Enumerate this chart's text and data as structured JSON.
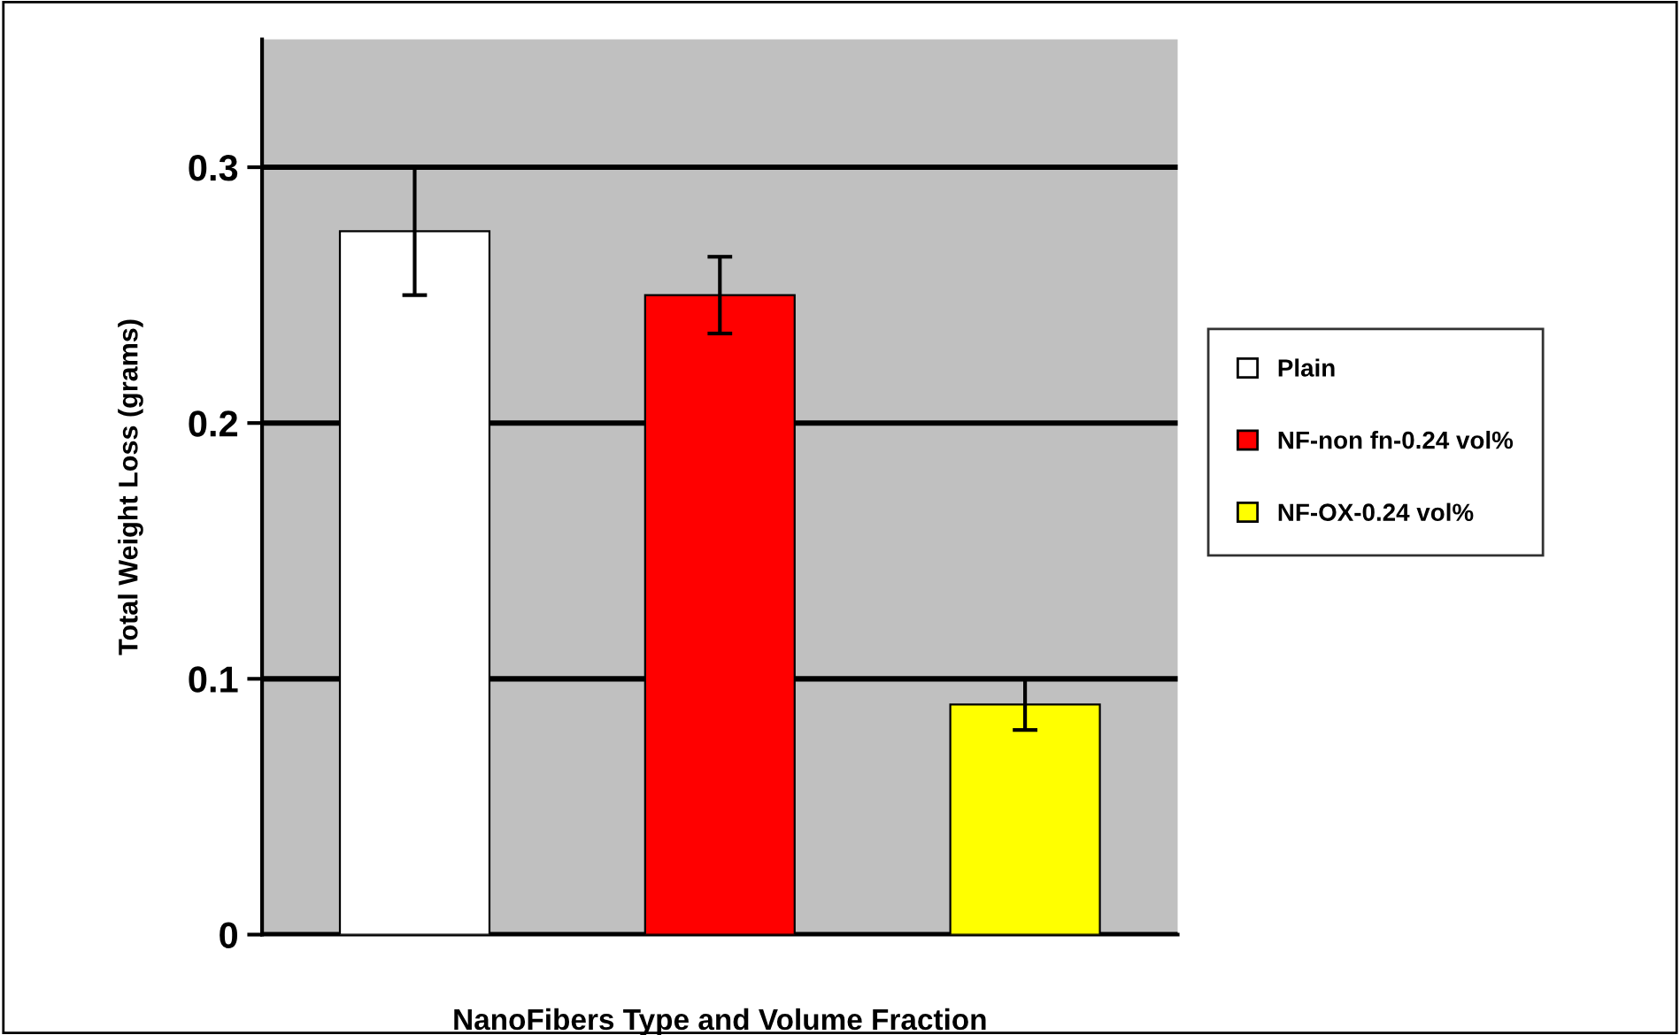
{
  "chart_data": {
    "type": "bar",
    "xlabel": "NanoFibers Type and Volume Fraction",
    "ylabel": "Total Weight Loss (grams)",
    "categories": [
      null,
      null,
      null
    ],
    "series": [
      {
        "name": "Plain",
        "color": "#ffffff",
        "values": [
          0.275,
          null,
          null
        ],
        "errors": [
          [
            0.25,
            0.3
          ],
          null,
          null
        ]
      },
      {
        "name": "NF-non fn-0.24 vol%",
        "color": "#ff0000",
        "values": [
          null,
          0.25,
          null
        ],
        "errors": [
          null,
          [
            0.235,
            0.265
          ],
          null
        ]
      },
      {
        "name": "NF-OX-0.24 vol%",
        "color": "#ffff00",
        "values": [
          null,
          null,
          0.09
        ],
        "errors": [
          null,
          null,
          [
            0.08,
            0.1
          ]
        ]
      }
    ],
    "ylim": [
      0,
      0.35
    ],
    "yticks": [
      0,
      0.1,
      0.2,
      0.3
    ],
    "grid": "y",
    "legend": "right",
    "tick_labels": "y"
  }
}
